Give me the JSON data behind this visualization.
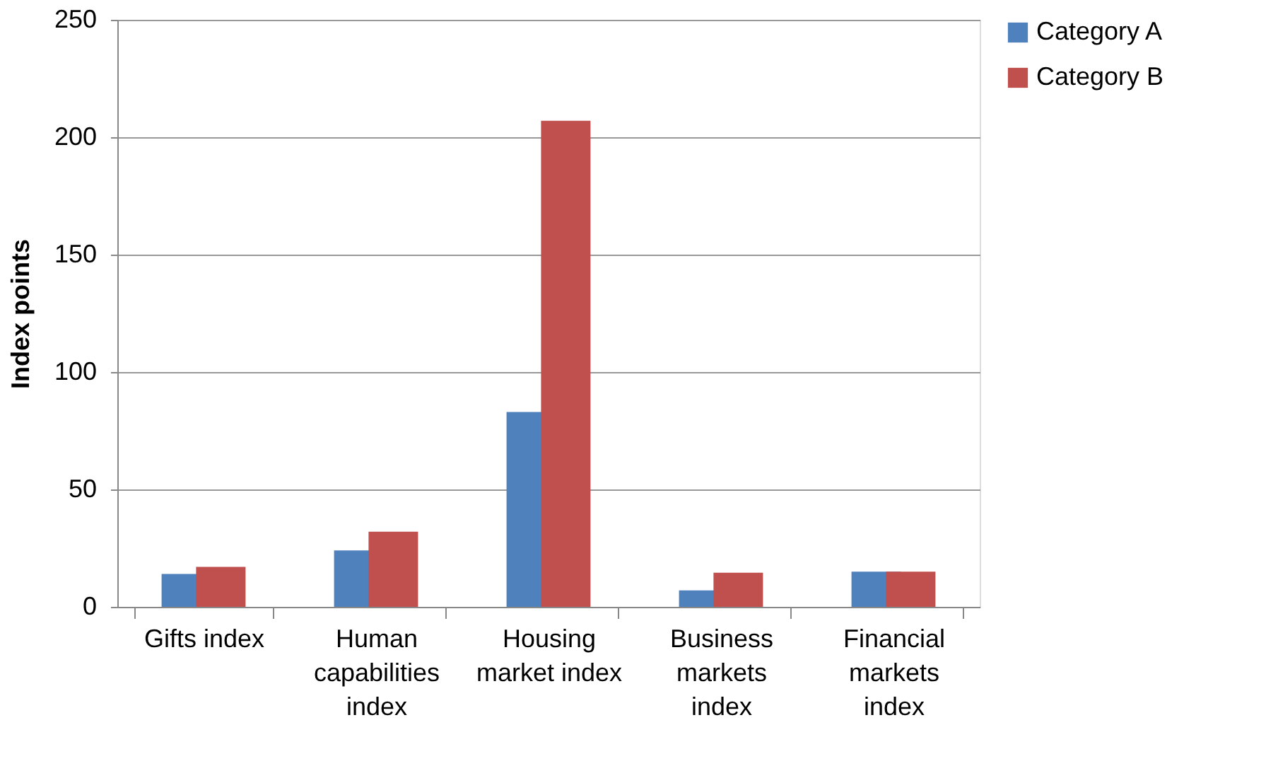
{
  "chart_data": {
    "type": "bar",
    "ylabel": "Index points",
    "categories": [
      "Gifts index",
      "Human capabilities index",
      "Housing market index",
      "Business markets index",
      "Financial markets index"
    ],
    "series": [
      {
        "name": "Category A",
        "color": "#4f81bd",
        "values": [
          14,
          24,
          83,
          7,
          15
        ]
      },
      {
        "name": "Category B",
        "color": "#c0504d",
        "values": [
          17,
          32,
          207,
          14.5,
          15
        ]
      }
    ],
    "ylim": [
      0,
      250
    ],
    "yticks": [
      0,
      50,
      100,
      150,
      200,
      250
    ],
    "grid": "y",
    "legend": "right"
  }
}
